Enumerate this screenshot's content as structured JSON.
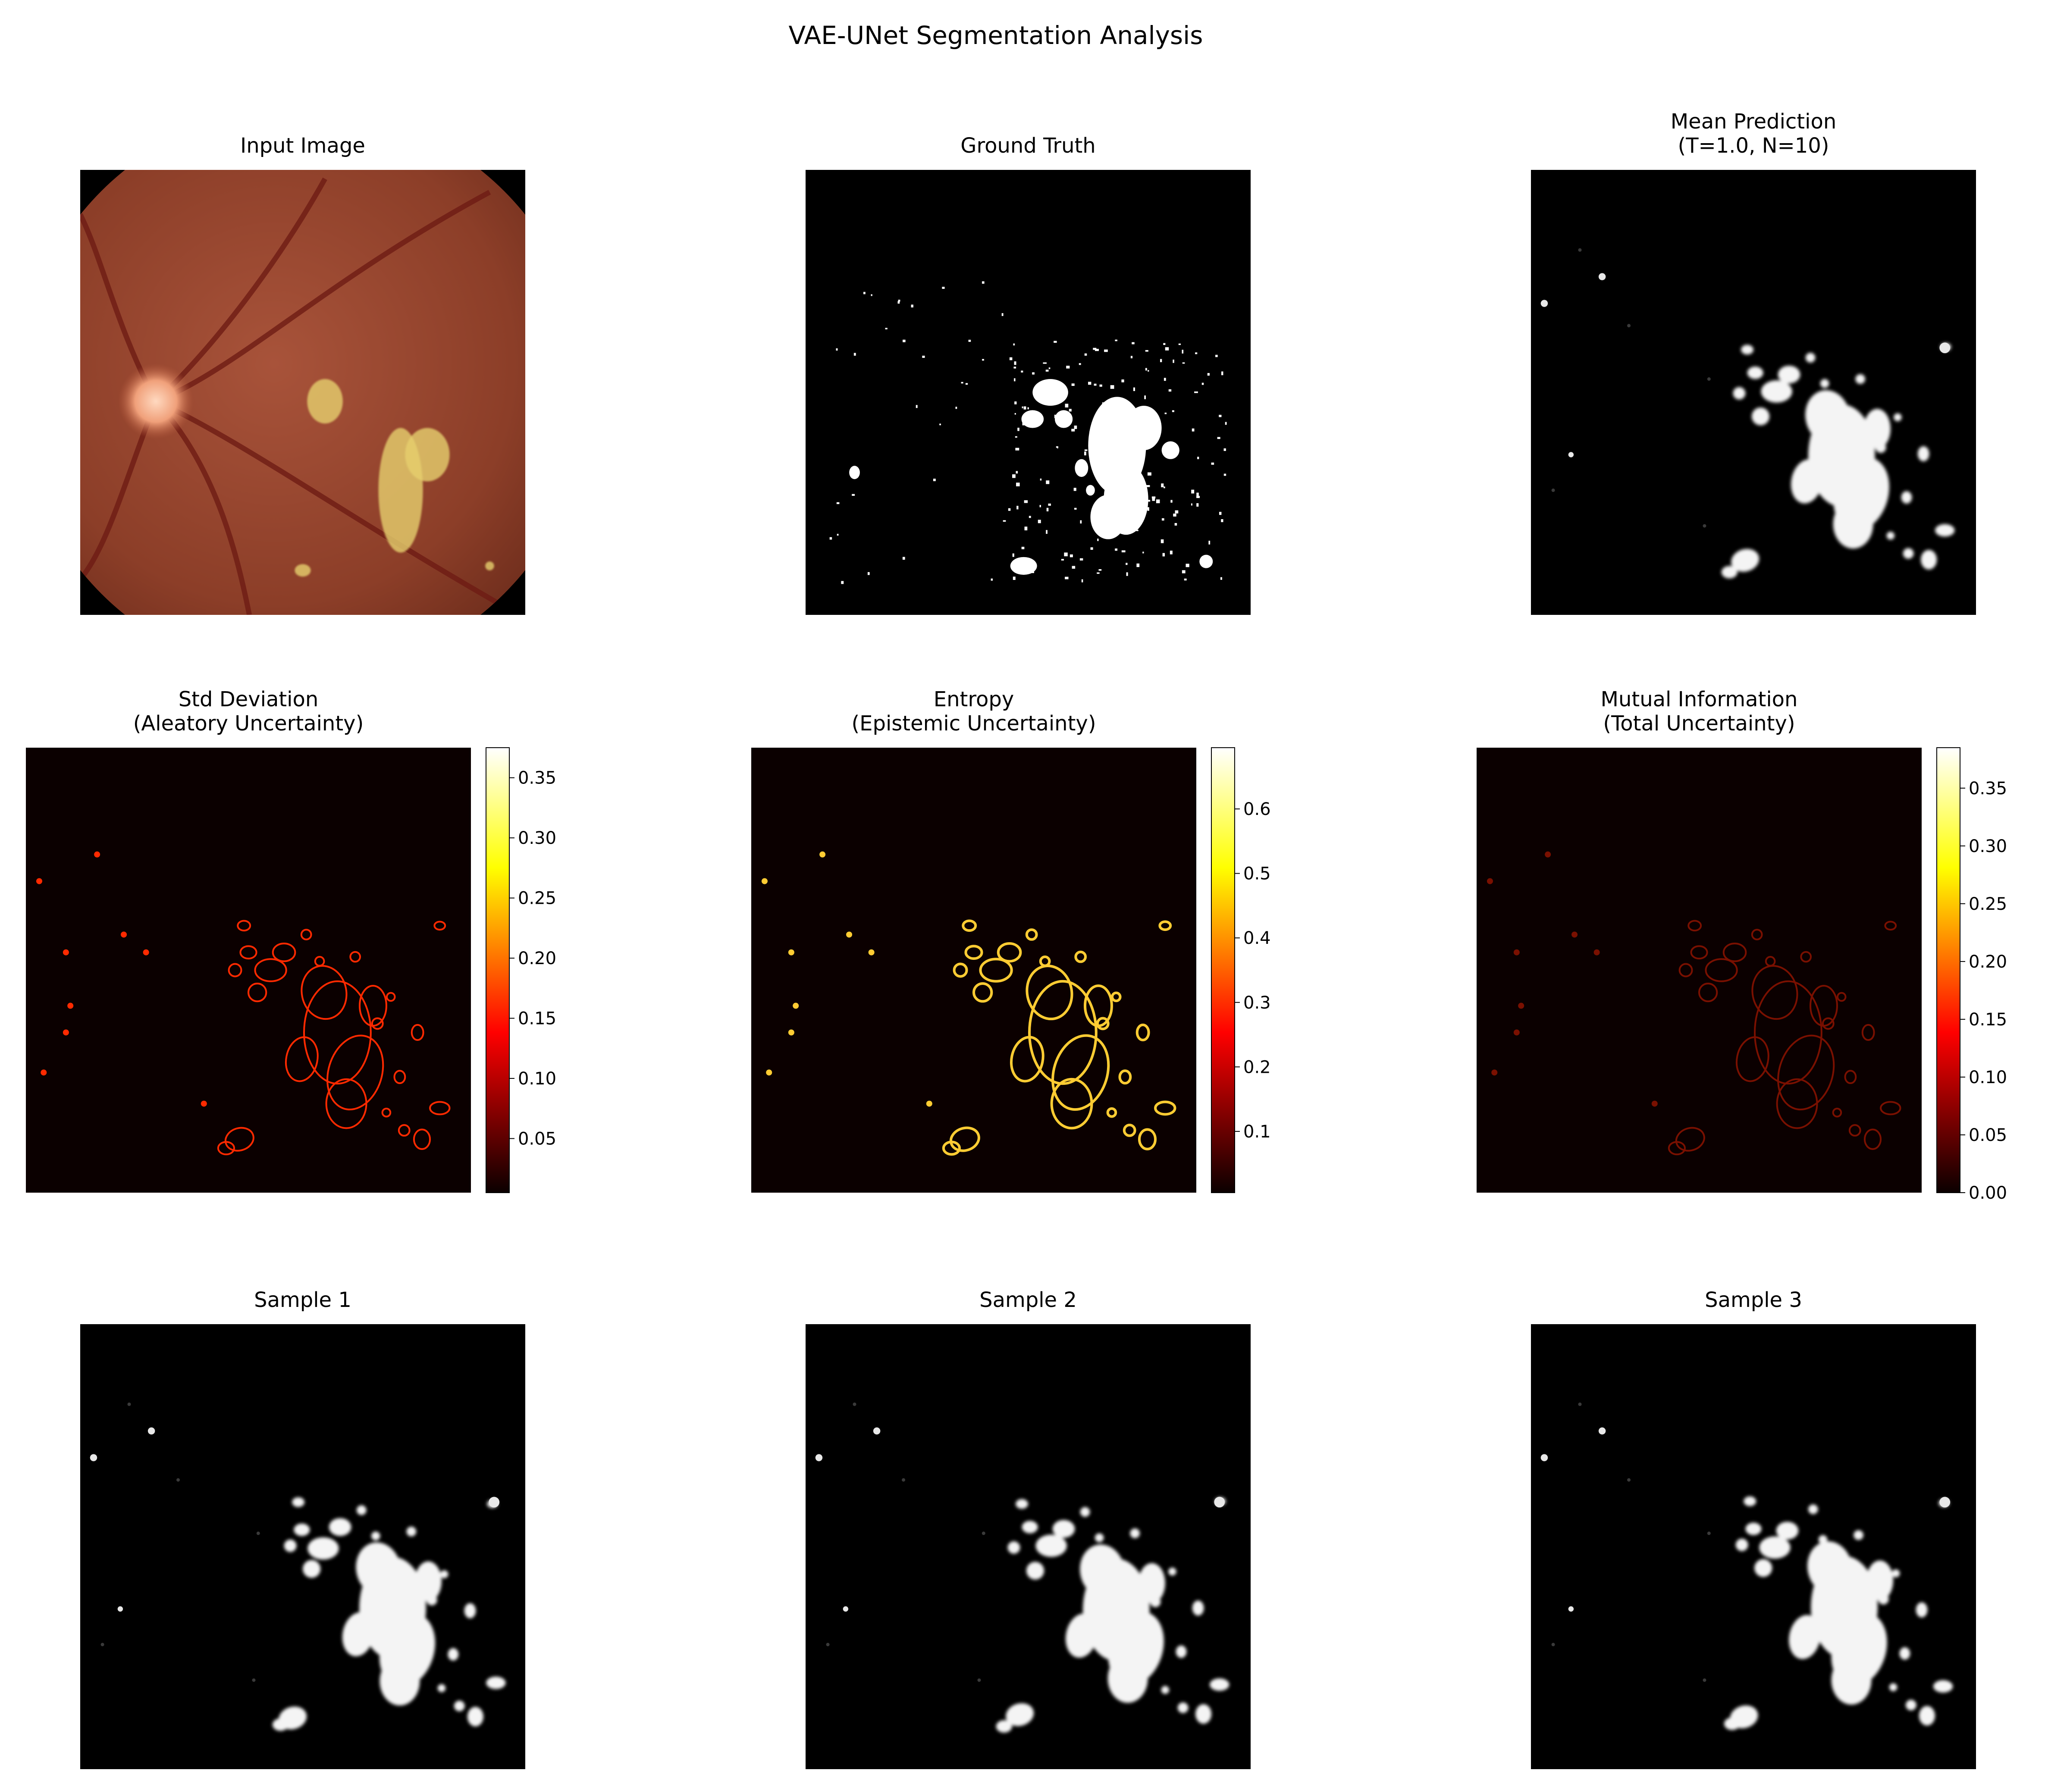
{
  "chart_data": {
    "type": "heatmap",
    "title": "VAE-UNet Segmentation Analysis",
    "layout": "3x3 grid",
    "panels": [
      {
        "row": 0,
        "col": 0,
        "title": "Input Image",
        "kind": "rgb-fundus",
        "colormap": "rgb",
        "colorbar": null
      },
      {
        "row": 0,
        "col": 1,
        "title": "Ground Truth",
        "kind": "binary-mask",
        "colormap": "gray",
        "colorbar": null
      },
      {
        "row": 0,
        "col": 2,
        "title": "Mean Prediction\n(T=1.0, N=10)",
        "kind": "probability-map",
        "colormap": "gray",
        "colorbar": null
      },
      {
        "row": 1,
        "col": 0,
        "title": "Std Deviation\n(Aleatory Uncertainty)",
        "kind": "uncertainty-map",
        "colormap": "hot",
        "colorbar": {
          "vmin": 0.005,
          "vmax": 0.375,
          "ticks": [
            0.05,
            0.1,
            0.15,
            0.2,
            0.25,
            0.3,
            0.35
          ],
          "tick_labels": [
            "0.05",
            "0.10",
            "0.15",
            "0.20",
            "0.25",
            "0.30",
            "0.35"
          ]
        }
      },
      {
        "row": 1,
        "col": 1,
        "title": "Entropy\n(Epistemic Uncertainty)",
        "kind": "uncertainty-map",
        "colormap": "hot",
        "colorbar": {
          "vmin": 0.005,
          "vmax": 0.695,
          "ticks": [
            0.1,
            0.2,
            0.3,
            0.4,
            0.5,
            0.6
          ],
          "tick_labels": [
            "0.1",
            "0.2",
            "0.3",
            "0.4",
            "0.5",
            "0.6"
          ]
        }
      },
      {
        "row": 1,
        "col": 2,
        "title": "Mutual Information\n(Total Uncertainty)",
        "kind": "uncertainty-map",
        "colormap": "hot",
        "colorbar": {
          "vmin": 0.0,
          "vmax": 0.385,
          "ticks": [
            0.0,
            0.05,
            0.1,
            0.15,
            0.2,
            0.25,
            0.3,
            0.35
          ],
          "tick_labels": [
            "0.00",
            "0.05",
            "0.10",
            "0.15",
            "0.20",
            "0.25",
            "0.30",
            "0.35"
          ]
        }
      },
      {
        "row": 2,
        "col": 0,
        "title": "Sample 1",
        "kind": "probability-map",
        "colormap": "gray",
        "colorbar": null
      },
      {
        "row": 2,
        "col": 1,
        "title": "Sample 2",
        "kind": "probability-map",
        "colormap": "gray",
        "colorbar": null
      },
      {
        "row": 2,
        "col": 2,
        "title": "Sample 3",
        "kind": "probability-map",
        "colormap": "gray",
        "colorbar": null
      }
    ]
  }
}
